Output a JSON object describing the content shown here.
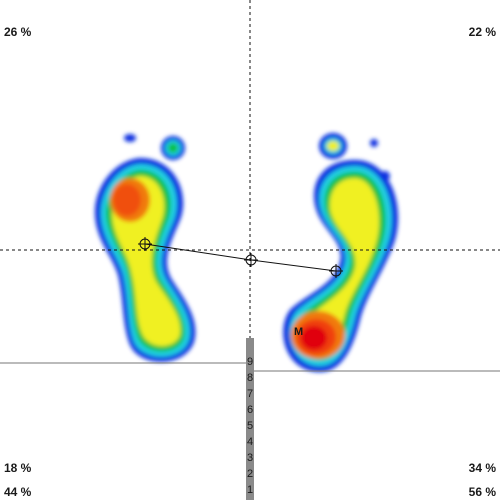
{
  "quadrants": {
    "top_left": "26 %",
    "top_right": "22 %",
    "lower_left": "18 %",
    "lower_right": "34 %",
    "bottom_left": "44 %",
    "bottom_right": "56 %"
  },
  "scale": [
    "9",
    "8",
    "7",
    "6",
    "5",
    "4",
    "3",
    "2",
    "1"
  ],
  "marker": "M",
  "pressure_colors": {
    "low": "#1030e0",
    "cyan": "#20d0e0",
    "green": "#10c040",
    "yellow": "#f0f020",
    "orange": "#f07a10",
    "high": "#e00010"
  }
}
